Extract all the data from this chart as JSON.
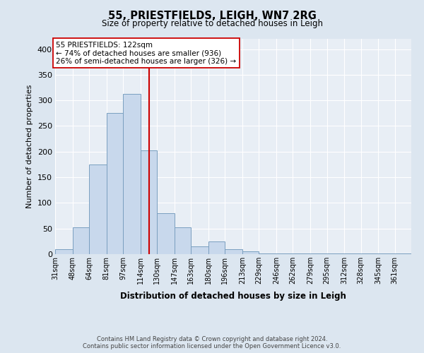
{
  "title1": "55, PRIESTFIELDS, LEIGH, WN7 2RG",
  "title2": "Size of property relative to detached houses in Leigh",
  "xlabel": "Distribution of detached houses by size in Leigh",
  "ylabel": "Number of detached properties",
  "categories": [
    "31sqm",
    "48sqm",
    "64sqm",
    "81sqm",
    "97sqm",
    "114sqm",
    "130sqm",
    "147sqm",
    "163sqm",
    "180sqm",
    "196sqm",
    "213sqm",
    "229sqm",
    "246sqm",
    "262sqm",
    "279sqm",
    "295sqm",
    "312sqm",
    "328sqm",
    "345sqm",
    "361sqm"
  ],
  "bin_edges": [
    31,
    48,
    64,
    81,
    97,
    114,
    130,
    147,
    163,
    180,
    196,
    213,
    229,
    246,
    262,
    279,
    295,
    312,
    328,
    345,
    361,
    377
  ],
  "heights": [
    10,
    53,
    175,
    275,
    313,
    203,
    80,
    53,
    15,
    25,
    9,
    6,
    2,
    1,
    1,
    1,
    1,
    1,
    1,
    1,
    1
  ],
  "bar_color": "#c8d8ec",
  "bar_edge_color": "#7a9fc0",
  "vline_x": 122,
  "vline_color": "#cc0000",
  "annotation_text": "55 PRIESTFIELDS: 122sqm\n← 74% of detached houses are smaller (936)\n26% of semi-detached houses are larger (326) →",
  "ylim": [
    0,
    420
  ],
  "yticks": [
    0,
    50,
    100,
    150,
    200,
    250,
    300,
    350,
    400
  ],
  "bg_color": "#dce6f0",
  "plot_bg_color": "#e8eef5",
  "grid_color": "#ffffff",
  "footer": "Contains HM Land Registry data © Crown copyright and database right 2024.\nContains public sector information licensed under the Open Government Licence v3.0."
}
